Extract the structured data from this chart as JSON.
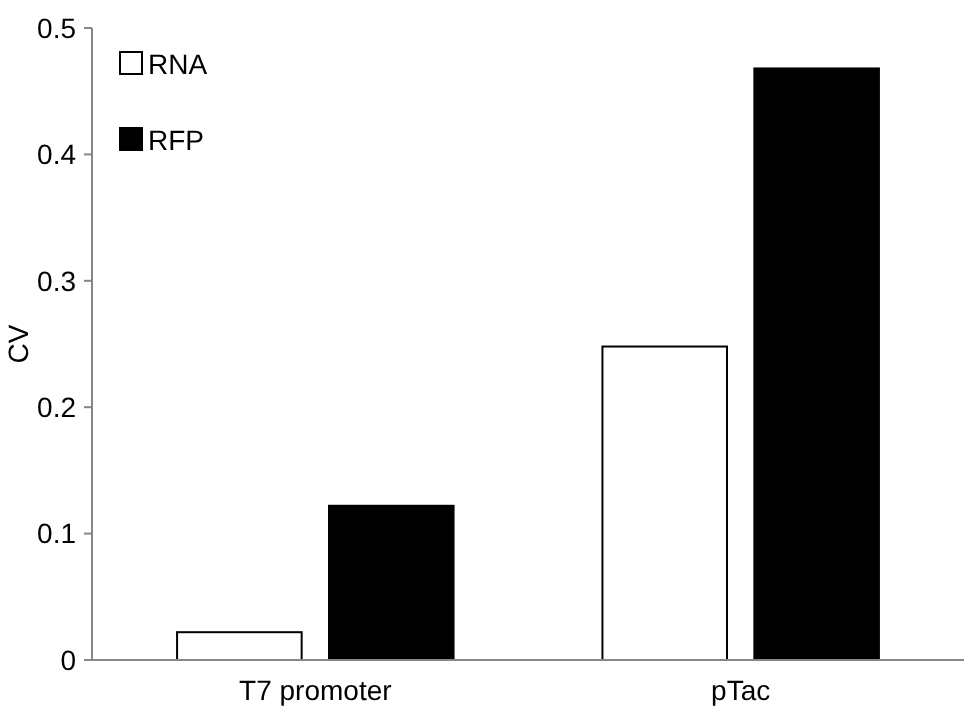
{
  "chart_data": {
    "type": "bar",
    "ylabel": "CV",
    "categories": [
      "T7 promoter",
      "pTac"
    ],
    "series": [
      {
        "name": "RNA",
        "color": "#ffffff",
        "values": [
          0.022,
          0.248
        ]
      },
      {
        "name": "RFP",
        "color": "#000000",
        "values": [
          0.122,
          0.468
        ]
      }
    ],
    "ylim": [
      0,
      0.5
    ],
    "yticks": [
      0,
      0.1,
      0.2,
      0.3,
      0.4,
      0.5
    ],
    "grid": false,
    "legend": "top left"
  }
}
